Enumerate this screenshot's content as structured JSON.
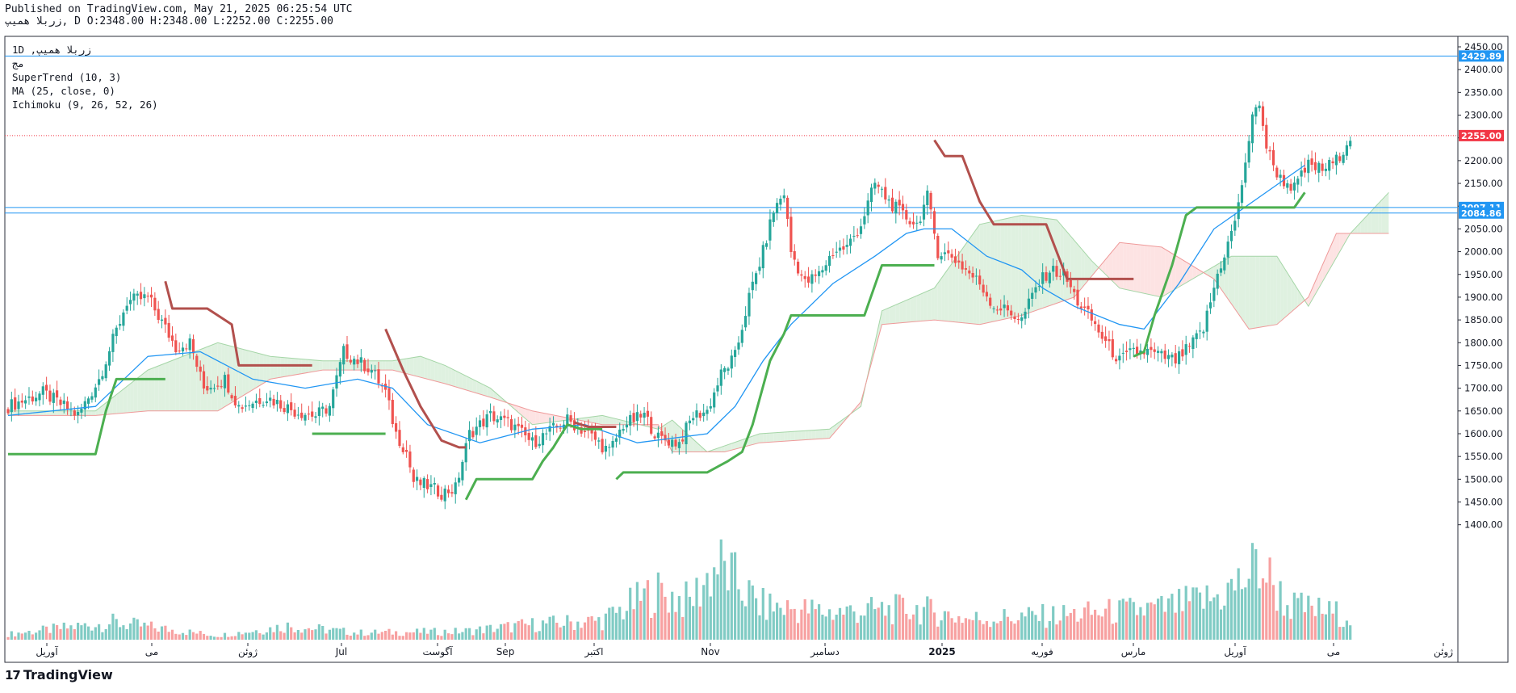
{
  "header": {
    "published": "Published on TradingView.com, May 21, 2025 06:25:54 UTC",
    "ohlc": "زربلا همیپ, D O:2348.00 H:2348.00 L:2252.00 C:2255.00"
  },
  "legend": {
    "symbol": "1D ,زربلا همیپ",
    "line2": "مج",
    "indicators": [
      "SuperTrend (10, 3)",
      "MA (25, close, 0)",
      "Ichimoku (9, 26, 52, 26)"
    ]
  },
  "brand": {
    "name": "TradingView",
    "mark": "17"
  },
  "colors": {
    "up": "#26a69a",
    "down": "#ef5350",
    "vol_up": "#80cbc4",
    "vol_down": "#f7a1a1",
    "st_up": "#4caf50",
    "st_down": "#b2504d",
    "ma": "#2196f3",
    "hline": "#2196f3",
    "last": "#f23645",
    "cloud_up": "#dff1e0",
    "cloud_down": "#fde3e3"
  },
  "chart_data": {
    "type": "candlestick",
    "price_axis": {
      "min": 1350,
      "max": 2450,
      "ticks": [
        2450,
        2400,
        2350,
        2300,
        2250,
        2200,
        2150,
        2100,
        2050,
        2000,
        1950,
        1900,
        1850,
        1800,
        1750,
        1700,
        1650,
        1600,
        1550,
        1500,
        1450,
        1400
      ]
    },
    "time_axis_labels": [
      "آوریل",
      "می",
      "ژوئن",
      "Jul",
      "آگوست",
      "Sep",
      "اکتبر",
      "Nov",
      "دسامبر",
      "2025",
      "فوریه",
      "مارس",
      "آوریل",
      "می",
      "ژوئن"
    ],
    "horizontal_lines": [
      {
        "price": 2429.89,
        "label": "2429.89"
      },
      {
        "price": 2097.11,
        "label": "2097.11"
      },
      {
        "price": 2084.86,
        "label": "2084.86"
      }
    ],
    "last_price": {
      "price": 2255.0,
      "label": "2255.00"
    },
    "close_path": [
      [
        0,
        1660
      ],
      [
        10,
        1690
      ],
      [
        20,
        1640
      ],
      [
        26,
        1720
      ],
      [
        34,
        1890
      ],
      [
        40,
        1900
      ],
      [
        48,
        1790
      ],
      [
        52,
        1800
      ],
      [
        56,
        1700
      ],
      [
        62,
        1720
      ],
      [
        66,
        1660
      ],
      [
        74,
        1680
      ],
      [
        82,
        1650
      ],
      [
        88,
        1640
      ],
      [
        92,
        1660
      ],
      [
        96,
        1780
      ],
      [
        100,
        1760
      ],
      [
        104,
        1740
      ],
      [
        108,
        1690
      ],
      [
        111,
        1600
      ],
      [
        114,
        1560
      ],
      [
        116,
        1495
      ],
      [
        120,
        1485
      ],
      [
        124,
        1470
      ],
      [
        128,
        1480
      ],
      [
        132,
        1600
      ],
      [
        138,
        1640
      ],
      [
        144,
        1620
      ],
      [
        150,
        1580
      ],
      [
        154,
        1600
      ],
      [
        160,
        1630
      ],
      [
        166,
        1600
      ],
      [
        172,
        1560
      ],
      [
        176,
        1620
      ],
      [
        182,
        1640
      ],
      [
        186,
        1590
      ],
      [
        192,
        1580
      ],
      [
        196,
        1640
      ],
      [
        200,
        1650
      ],
      [
        204,
        1730
      ],
      [
        208,
        1770
      ],
      [
        212,
        1900
      ],
      [
        216,
        2000
      ],
      [
        219,
        2090
      ],
      [
        222,
        2130
      ],
      [
        224,
        2000
      ],
      [
        228,
        1930
      ],
      [
        232,
        1950
      ],
      [
        236,
        2000
      ],
      [
        240,
        2010
      ],
      [
        244,
        2060
      ],
      [
        248,
        2150
      ],
      [
        252,
        2110
      ],
      [
        256,
        2080
      ],
      [
        260,
        2060
      ],
      [
        263,
        2120
      ],
      [
        266,
        2000
      ],
      [
        270,
        1990
      ],
      [
        274,
        1960
      ],
      [
        278,
        1930
      ],
      [
        282,
        1880
      ],
      [
        286,
        1870
      ],
      [
        290,
        1850
      ],
      [
        294,
        1920
      ],
      [
        298,
        1960
      ],
      [
        302,
        1950
      ],
      [
        306,
        1890
      ],
      [
        310,
        1850
      ],
      [
        314,
        1800
      ],
      [
        318,
        1760
      ],
      [
        322,
        1780
      ],
      [
        326,
        1780
      ],
      [
        330,
        1770
      ],
      [
        334,
        1760
      ],
      [
        338,
        1790
      ],
      [
        342,
        1830
      ],
      [
        346,
        1950
      ],
      [
        350,
        2040
      ],
      [
        352,
        2100
      ],
      [
        354,
        2200
      ],
      [
        356,
        2290
      ],
      [
        358,
        2330
      ],
      [
        360,
        2230
      ],
      [
        362,
        2190
      ],
      [
        364,
        2160
      ],
      [
        368,
        2140
      ],
      [
        372,
        2190
      ],
      [
        376,
        2180
      ],
      [
        380,
        2200
      ],
      [
        383,
        2240
      ],
      [
        384,
        2255
      ]
    ],
    "volume_path": [
      [
        0,
        8
      ],
      [
        30,
        25
      ],
      [
        60,
        6
      ],
      [
        80,
        20
      ],
      [
        100,
        10
      ],
      [
        130,
        12
      ],
      [
        150,
        22
      ],
      [
        170,
        28
      ],
      [
        185,
        70
      ],
      [
        195,
        55
      ],
      [
        203,
        110
      ],
      [
        215,
        50
      ],
      [
        235,
        40
      ],
      [
        260,
        45
      ],
      [
        275,
        30
      ],
      [
        300,
        35
      ],
      [
        315,
        40
      ],
      [
        330,
        45
      ],
      [
        345,
        60
      ],
      [
        352,
        80
      ],
      [
        358,
        110
      ],
      [
        366,
        50
      ],
      [
        384,
        35
      ]
    ],
    "supertrend": [
      {
        "trend": "up",
        "points": [
          [
            0,
            1555
          ],
          [
            25,
            1555
          ],
          [
            28,
            1650
          ],
          [
            31,
            1720
          ],
          [
            45,
            1720
          ]
        ]
      },
      {
        "trend": "down",
        "points": [
          [
            45,
            1935
          ],
          [
            47,
            1875
          ],
          [
            57,
            1875
          ],
          [
            61,
            1855
          ],
          [
            64,
            1840
          ],
          [
            66,
            1750
          ],
          [
            87,
            1750
          ]
        ]
      },
      {
        "trend": "up",
        "points": [
          [
            87,
            1600
          ],
          [
            108,
            1600
          ]
        ]
      },
      {
        "trend": "down",
        "points": [
          [
            108,
            1830
          ],
          [
            113,
            1740
          ],
          [
            118,
            1660
          ],
          [
            124,
            1585
          ],
          [
            129,
            1570
          ],
          [
            131,
            1570
          ]
        ]
      },
      {
        "trend": "up",
        "points": [
          [
            131,
            1455
          ],
          [
            134,
            1500
          ],
          [
            150,
            1500
          ],
          [
            153,
            1540
          ],
          [
            156,
            1570
          ],
          [
            160,
            1620
          ],
          [
            164,
            1610
          ],
          [
            170,
            1610
          ]
        ]
      },
      {
        "trend": "down",
        "points": [
          [
            162,
            1625
          ],
          [
            166,
            1615
          ],
          [
            174,
            1615
          ]
        ]
      },
      {
        "trend": "up",
        "points": [
          [
            174,
            1500
          ],
          [
            176,
            1515
          ],
          [
            200,
            1515
          ],
          [
            206,
            1540
          ],
          [
            210,
            1560
          ],
          [
            213,
            1620
          ],
          [
            218,
            1760
          ],
          [
            222,
            1820
          ],
          [
            224,
            1860
          ],
          [
            245,
            1860
          ],
          [
            250,
            1970
          ],
          [
            265,
            1970
          ]
        ]
      },
      {
        "trend": "down",
        "points": [
          [
            265,
            2245
          ],
          [
            268,
            2210
          ],
          [
            273,
            2210
          ],
          [
            278,
            2110
          ],
          [
            282,
            2060
          ],
          [
            297,
            2060
          ],
          [
            301,
            1980
          ],
          [
            303,
            1940
          ],
          [
            322,
            1940
          ]
        ]
      },
      {
        "trend": "up",
        "points": [
          [
            322,
            1770
          ],
          [
            325,
            1780
          ],
          [
            328,
            1860
          ],
          [
            333,
            1970
          ],
          [
            337,
            2080
          ],
          [
            340,
            2097
          ],
          [
            358,
            2097
          ],
          [
            361,
            2097
          ],
          [
            368,
            2097
          ],
          [
            371,
            2130
          ]
        ]
      }
    ],
    "ma": [
      [
        0,
        1640
      ],
      [
        25,
        1660
      ],
      [
        40,
        1770
      ],
      [
        55,
        1780
      ],
      [
        70,
        1720
      ],
      [
        85,
        1700
      ],
      [
        100,
        1720
      ],
      [
        110,
        1700
      ],
      [
        120,
        1620
      ],
      [
        135,
        1580
      ],
      [
        150,
        1610
      ],
      [
        165,
        1620
      ],
      [
        180,
        1580
      ],
      [
        200,
        1600
      ],
      [
        208,
        1660
      ],
      [
        216,
        1760
      ],
      [
        224,
        1840
      ],
      [
        236,
        1930
      ],
      [
        248,
        1990
      ],
      [
        257,
        2040
      ],
      [
        262,
        2050
      ],
      [
        270,
        2050
      ],
      [
        280,
        1990
      ],
      [
        290,
        1960
      ],
      [
        296,
        1920
      ],
      [
        305,
        1880
      ],
      [
        318,
        1840
      ],
      [
        325,
        1830
      ],
      [
        335,
        1930
      ],
      [
        345,
        2050
      ],
      [
        358,
        2120
      ],
      [
        371,
        2190
      ]
    ],
    "kumo": {
      "span_a": [
        [
          0,
          1650
        ],
        [
          25,
          1650
        ],
        [
          40,
          1740
        ],
        [
          60,
          1800
        ],
        [
          75,
          1770
        ],
        [
          90,
          1760
        ],
        [
          110,
          1760
        ],
        [
          118,
          1770
        ],
        [
          125,
          1750
        ],
        [
          138,
          1700
        ],
        [
          150,
          1620
        ],
        [
          170,
          1640
        ],
        [
          186,
          1610
        ],
        [
          190,
          1630
        ],
        [
          200,
          1560
        ],
        [
          215,
          1600
        ],
        [
          235,
          1610
        ],
        [
          244,
          1660
        ],
        [
          250,
          1870
        ],
        [
          265,
          1920
        ],
        [
          278,
          2060
        ],
        [
          290,
          2080
        ],
        [
          300,
          2070
        ],
        [
          310,
          1980
        ],
        [
          318,
          1920
        ],
        [
          330,
          1900
        ],
        [
          350,
          1990
        ],
        [
          363,
          1990
        ],
        [
          372,
          1880
        ],
        [
          384,
          2040
        ],
        [
          395,
          2130
        ]
      ],
      "span_b": [
        [
          0,
          1640
        ],
        [
          25,
          1640
        ],
        [
          40,
          1650
        ],
        [
          60,
          1650
        ],
        [
          75,
          1720
        ],
        [
          90,
          1740
        ],
        [
          110,
          1740
        ],
        [
          125,
          1710
        ],
        [
          138,
          1680
        ],
        [
          150,
          1650
        ],
        [
          170,
          1620
        ],
        [
          186,
          1620
        ],
        [
          190,
          1560
        ],
        [
          205,
          1560
        ],
        [
          215,
          1580
        ],
        [
          235,
          1590
        ],
        [
          244,
          1670
        ],
        [
          250,
          1840
        ],
        [
          265,
          1850
        ],
        [
          278,
          1840
        ],
        [
          290,
          1860
        ],
        [
          305,
          1900
        ],
        [
          318,
          2020
        ],
        [
          330,
          2010
        ],
        [
          345,
          1940
        ],
        [
          355,
          1830
        ],
        [
          363,
          1840
        ],
        [
          372,
          1900
        ],
        [
          380,
          2040
        ],
        [
          395,
          2040
        ]
      ]
    }
  }
}
